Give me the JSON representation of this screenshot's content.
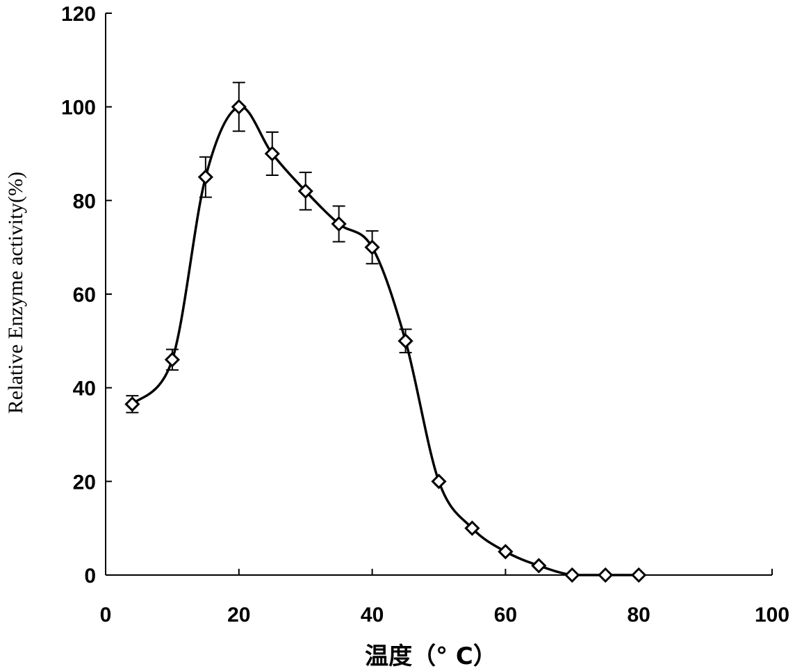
{
  "chart_data": {
    "type": "line",
    "title": "",
    "xlabel": "温度（° C）",
    "ylabel": "Relative Enzyme activity(%)",
    "xlim": [
      0,
      100
    ],
    "ylim": [
      0,
      120
    ],
    "x_ticks": [
      0,
      20,
      40,
      60,
      80,
      100
    ],
    "y_ticks": [
      0,
      20,
      40,
      60,
      80,
      100,
      120
    ],
    "grid": false,
    "legend": "none",
    "line_color": "#000000",
    "marker": "diamond-open",
    "smooth": true,
    "series": [
      {
        "x": [
          4,
          10,
          15,
          20,
          25,
          30,
          35,
          40,
          45,
          50,
          55,
          60,
          65,
          70,
          75,
          80
        ],
        "values": [
          36.5,
          46,
          85,
          100,
          90,
          82,
          75,
          70,
          50,
          20,
          10,
          5,
          2,
          0,
          0,
          0
        ],
        "error": [
          1.8,
          2.2,
          4.3,
          5.2,
          4.6,
          4.0,
          3.8,
          3.5,
          2.5,
          0,
          0,
          0,
          0,
          0,
          0,
          0
        ]
      }
    ]
  }
}
